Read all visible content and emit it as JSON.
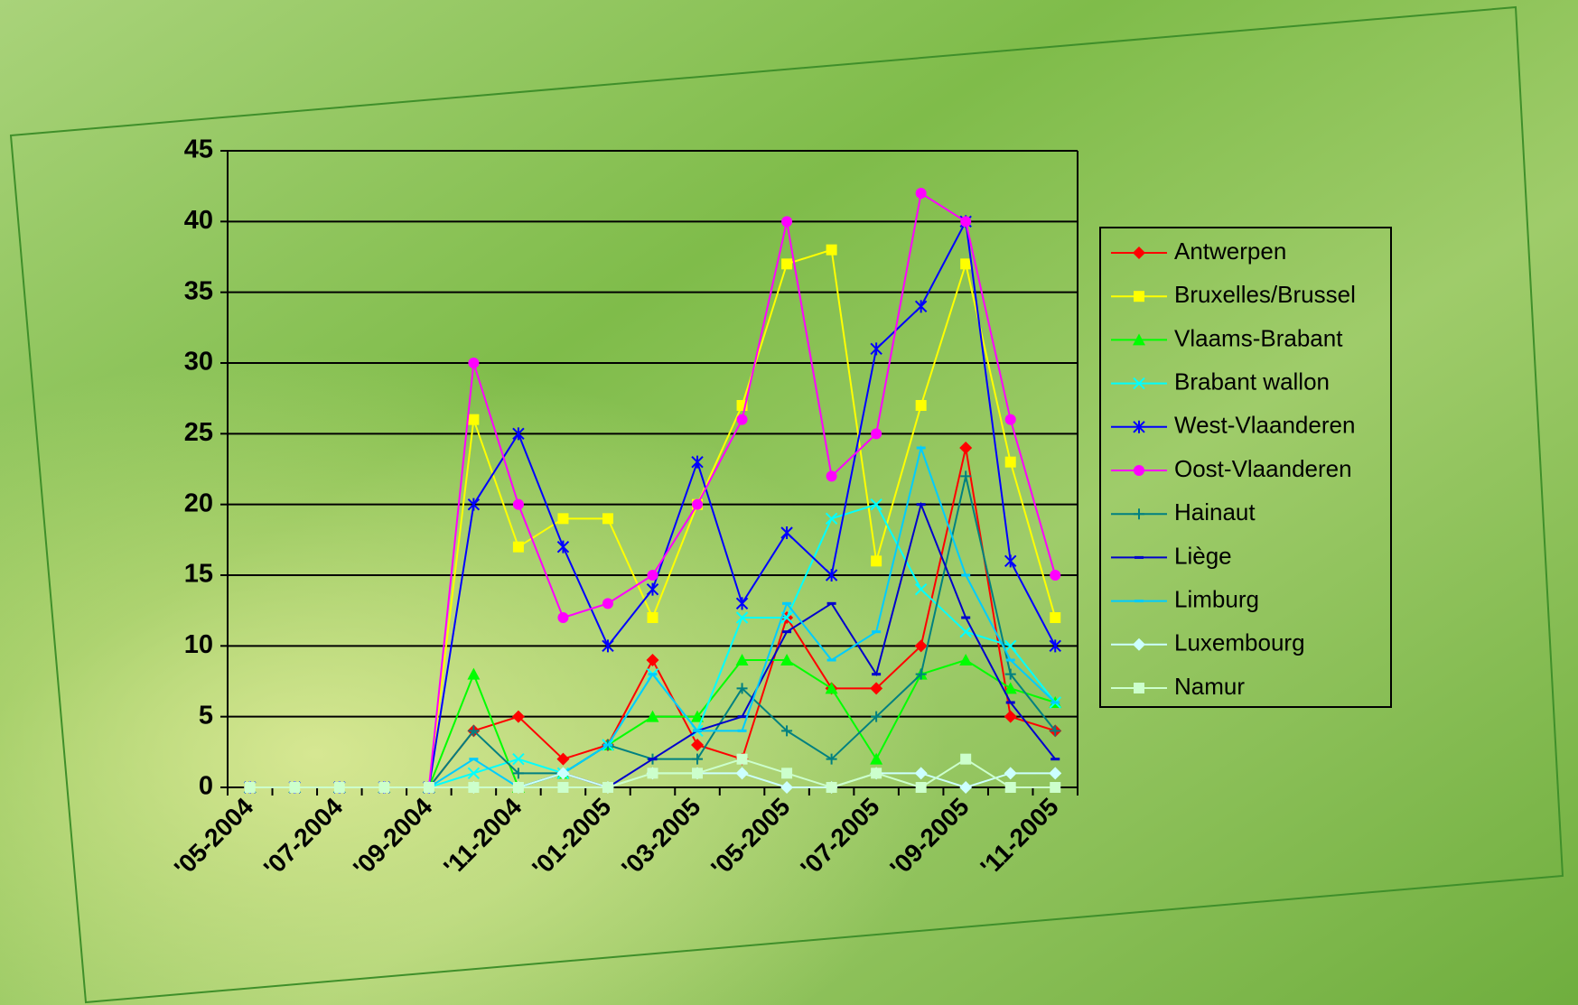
{
  "chart_data": {
    "type": "line",
    "categories": [
      "'05-2004",
      null,
      "'07-2004",
      null,
      "'09-2004",
      null,
      "'11-2004",
      null,
      "'01-2005",
      null,
      "'03-2005",
      null,
      "'05-2005",
      null,
      "'07-2005",
      null,
      "'09-2005",
      null,
      "'11-2005"
    ],
    "ylim": [
      0,
      45
    ],
    "yticks": [
      0,
      5,
      10,
      15,
      20,
      25,
      30,
      35,
      40,
      45
    ],
    "grid": true,
    "legend": "right",
    "series": [
      {
        "name": "Antwerpen",
        "color": "#ff0000",
        "marker": "diamond",
        "values": [
          0,
          0,
          0,
          0,
          0,
          4,
          5,
          2,
          3,
          9,
          3,
          2,
          12,
          7,
          7,
          10,
          24,
          5,
          4
        ]
      },
      {
        "name": "Bruxelles/Brussel",
        "color": "#ffff00",
        "marker": "square",
        "values": [
          0,
          0,
          0,
          0,
          0,
          26,
          17,
          19,
          19,
          12,
          20,
          27,
          37,
          38,
          16,
          27,
          37,
          23,
          12
        ]
      },
      {
        "name": "Vlaams-Brabant",
        "color": "#00ff00",
        "marker": "triangle",
        "values": [
          0,
          0,
          0,
          0,
          0,
          8,
          0,
          1,
          3,
          5,
          5,
          9,
          9,
          7,
          2,
          8,
          9,
          7,
          6
        ]
      },
      {
        "name": "Brabant wallon",
        "color": "#00ffff",
        "marker": "x",
        "values": [
          0,
          0,
          0,
          0,
          0,
          1,
          2,
          1,
          3,
          8,
          4,
          12,
          12,
          19,
          20,
          14,
          11,
          10,
          6
        ]
      },
      {
        "name": "West-Vlaanderen",
        "color": "#0000ff",
        "marker": "star",
        "values": [
          0,
          0,
          0,
          0,
          0,
          20,
          25,
          17,
          10,
          14,
          23,
          13,
          18,
          15,
          31,
          34,
          40,
          16,
          10
        ]
      },
      {
        "name": "Oost-Vlaanderen",
        "color": "#ff00ff",
        "marker": "circle",
        "values": [
          0,
          0,
          0,
          0,
          0,
          30,
          20,
          12,
          13,
          15,
          20,
          26,
          40,
          22,
          25,
          42,
          40,
          26,
          15
        ]
      },
      {
        "name": "Hainaut",
        "color": "#008080",
        "marker": "plus",
        "values": [
          0,
          0,
          0,
          0,
          0,
          4,
          1,
          1,
          3,
          2,
          2,
          7,
          4,
          2,
          5,
          8,
          22,
          8,
          4
        ]
      },
      {
        "name": "Liège",
        "color": "#0000cc",
        "marker": "dash",
        "values": [
          0,
          0,
          0,
          0,
          0,
          0,
          0,
          1,
          0,
          2,
          4,
          5,
          11,
          13,
          8,
          20,
          12,
          6,
          2
        ]
      },
      {
        "name": "Limburg",
        "color": "#00ccff",
        "marker": "dash",
        "values": [
          0,
          0,
          0,
          0,
          0,
          2,
          0,
          1,
          3,
          8,
          4,
          4,
          13,
          9,
          11,
          24,
          15,
          9,
          6
        ]
      },
      {
        "name": "Luxembourg",
        "color": "#ccffff",
        "marker": "diamond",
        "values": [
          0,
          0,
          0,
          0,
          0,
          0,
          0,
          1,
          0,
          1,
          1,
          1,
          0,
          0,
          1,
          1,
          0,
          1,
          1
        ]
      },
      {
        "name": "Namur",
        "color": "#ccffcc",
        "marker": "square",
        "values": [
          0,
          0,
          0,
          0,
          0,
          0,
          0,
          0,
          0,
          1,
          1,
          2,
          1,
          0,
          1,
          0,
          2,
          0,
          0
        ]
      }
    ]
  }
}
